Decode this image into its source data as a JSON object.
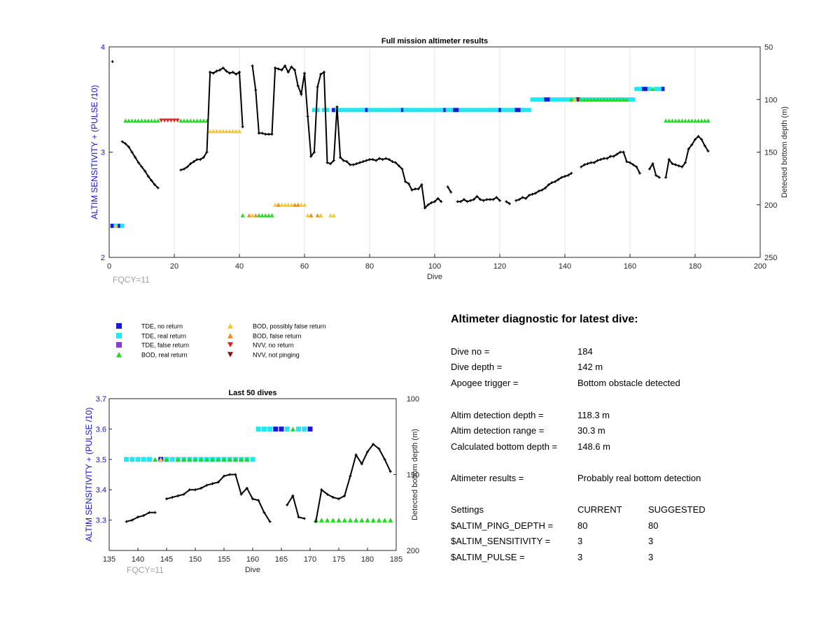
{
  "chart_data": [
    {
      "type": "scatter",
      "title": "Full mission altimeter results",
      "xlabel": "Dive",
      "ylabel": "ALTIM SENSITIVITY + (PULSE /10)",
      "y2label": "Detected bottom depth (m)",
      "annotation": "FQCY=11",
      "xlim": [
        0,
        200
      ],
      "ylim": [
        2,
        4
      ],
      "y2lim": [
        250,
        50
      ],
      "xticks": [
        "0",
        "20",
        "40",
        "60",
        "80",
        "100",
        "120",
        "140",
        "160",
        "180",
        "200"
      ],
      "yticks": [
        "2",
        "3",
        "4"
      ],
      "y2ticks": [
        "50",
        "100",
        "150",
        "200",
        "250"
      ],
      "grid": "vertical",
      "colors": {
        "axis_left": "#1414c8",
        "line": "#000000"
      },
      "markers": [
        {
          "kind": "tde_no",
          "dives": [
            1,
            3,
            69,
            79,
            90,
            103,
            106,
            107,
            120,
            125,
            126,
            134,
            135,
            144,
            164,
            165,
            170
          ]
        },
        {
          "kind": "tde_real",
          "dives": [
            2,
            4,
            70,
            71,
            72,
            73,
            74,
            75,
            76,
            77,
            78,
            80,
            81,
            82,
            83,
            84,
            85,
            86,
            87,
            88,
            89,
            91,
            92,
            93,
            94,
            95,
            96,
            97,
            98,
            99,
            100,
            101,
            102,
            104,
            105,
            108,
            109,
            110,
            111,
            112,
            113,
            114,
            115,
            116,
            117,
            118,
            119,
            121,
            122,
            123,
            124,
            127,
            128,
            129,
            130,
            131,
            132,
            133,
            136,
            137,
            138,
            139,
            140,
            141,
            142,
            143,
            145,
            146,
            147,
            148,
            149,
            150,
            151,
            152,
            153,
            154,
            155,
            156,
            157,
            158,
            159,
            160,
            161,
            162,
            163,
            166,
            168,
            169,
            63,
            64,
            66,
            67
          ]
        },
        {
          "kind": "bod_real",
          "dives": [
            5,
            6,
            7,
            8,
            9,
            10,
            11,
            12,
            13,
            14,
            15,
            22,
            23,
            24,
            25,
            26,
            27,
            28,
            29,
            30,
            41,
            46,
            47,
            48,
            49,
            50,
            65,
            142,
            145,
            146,
            147,
            148,
            149,
            150,
            151,
            152,
            153,
            154,
            155,
            156,
            157,
            158,
            159,
            167,
            171,
            172,
            173,
            174,
            175,
            176,
            177,
            178,
            179,
            180,
            181,
            182,
            183,
            184
          ]
        },
        {
          "kind": "bod_possibly_false",
          "dives": [
            2,
            31,
            32,
            33,
            34,
            35,
            36,
            37,
            38,
            39,
            40,
            44,
            51,
            52,
            53,
            54,
            55,
            56,
            57,
            58,
            59,
            60,
            61,
            62,
            65,
            68,
            69,
            143
          ]
        },
        {
          "kind": "bod_false",
          "dives": [
            43,
            45,
            52,
            57,
            58,
            62,
            64
          ]
        },
        {
          "kind": "nvv_no",
          "dives": [
            16,
            17,
            18,
            19,
            20,
            21
          ]
        },
        {
          "kind": "nvv_not",
          "dives": [
            144
          ]
        }
      ],
      "bottom_depth_series": [
        [
          1,
          64
        ],
        [
          4,
          140
        ],
        [
          5,
          142
        ],
        [
          6,
          145
        ],
        [
          7,
          150
        ],
        [
          8,
          155
        ],
        [
          9,
          160
        ],
        [
          10,
          164
        ],
        [
          11,
          168
        ],
        [
          12,
          173
        ],
        [
          13,
          177
        ],
        [
          14,
          181
        ],
        [
          15,
          184
        ],
        [
          22,
          167
        ],
        [
          23,
          166
        ],
        [
          24,
          164
        ],
        [
          25,
          161
        ],
        [
          26,
          159
        ],
        [
          27,
          157
        ],
        [
          28,
          157
        ],
        [
          29,
          155
        ],
        [
          30,
          150
        ],
        [
          31,
          74
        ],
        [
          32,
          75
        ],
        [
          33,
          73
        ],
        [
          34,
          72
        ],
        [
          35,
          70
        ],
        [
          36,
          73
        ],
        [
          37,
          75
        ],
        [
          38,
          74
        ],
        [
          39,
          76
        ],
        [
          40,
          74
        ],
        [
          41,
          126
        ],
        [
          44,
          68
        ],
        [
          45,
          91
        ],
        [
          46,
          132
        ],
        [
          47,
          132
        ],
        [
          48,
          133
        ],
        [
          49,
          133
        ],
        [
          50,
          133
        ],
        [
          51,
          70
        ],
        [
          52,
          71
        ],
        [
          53,
          72
        ],
        [
          54,
          68
        ],
        [
          55,
          74
        ],
        [
          56,
          69
        ],
        [
          57,
          72
        ],
        [
          58,
          87
        ],
        [
          59,
          95
        ],
        [
          60,
          75
        ],
        [
          61,
          116
        ],
        [
          62,
          154
        ],
        [
          63,
          150
        ],
        [
          64,
          88
        ],
        [
          65,
          76
        ],
        [
          66,
          74
        ],
        [
          67,
          160
        ],
        [
          68,
          161
        ],
        [
          69,
          158
        ],
        [
          70,
          107
        ],
        [
          71,
          155
        ],
        [
          72,
          158
        ],
        [
          73,
          159
        ],
        [
          74,
          162
        ],
        [
          75,
          162
        ],
        [
          76,
          161
        ],
        [
          77,
          160
        ],
        [
          78,
          159
        ],
        [
          79,
          158
        ],
        [
          80,
          157
        ],
        [
          81,
          157
        ],
        [
          82,
          158
        ],
        [
          83,
          156
        ],
        [
          84,
          157
        ],
        [
          85,
          156
        ],
        [
          86,
          157
        ],
        [
          87,
          159
        ],
        [
          88,
          160
        ],
        [
          89,
          163
        ],
        [
          90,
          166
        ],
        [
          91,
          178
        ],
        [
          92,
          180
        ],
        [
          93,
          186
        ],
        [
          94,
          185
        ],
        [
          95,
          185
        ],
        [
          96,
          181
        ],
        [
          97,
          203
        ],
        [
          98,
          200
        ],
        [
          99,
          198
        ],
        [
          100,
          197
        ],
        [
          101,
          194
        ],
        [
          102,
          197
        ],
        [
          104,
          183
        ],
        [
          105,
          188
        ],
        [
          107,
          197
        ],
        [
          108,
          197
        ],
        [
          109,
          195
        ],
        [
          110,
          197
        ],
        [
          111,
          196
        ],
        [
          112,
          195
        ],
        [
          113,
          192
        ],
        [
          114,
          195
        ],
        [
          115,
          196
        ],
        [
          116,
          195
        ],
        [
          117,
          195
        ],
        [
          118,
          195
        ],
        [
          119,
          193
        ],
        [
          120,
          196
        ],
        [
          122,
          197
        ],
        [
          123,
          199
        ],
        [
          125,
          196
        ],
        [
          126,
          195
        ],
        [
          127,
          193
        ],
        [
          128,
          194
        ],
        [
          129,
          191
        ],
        [
          130,
          190
        ],
        [
          131,
          189
        ],
        [
          132,
          187
        ],
        [
          133,
          186
        ],
        [
          134,
          184
        ],
        [
          135,
          181
        ],
        [
          136,
          179
        ],
        [
          137,
          178
        ],
        [
          138,
          176
        ],
        [
          139,
          174
        ],
        [
          140,
          173
        ],
        [
          141,
          172
        ],
        [
          142,
          170
        ],
        [
          145,
          164
        ],
        [
          146,
          162
        ],
        [
          147,
          161
        ],
        [
          148,
          160
        ],
        [
          149,
          160
        ],
        [
          150,
          158
        ],
        [
          151,
          157
        ],
        [
          152,
          156
        ],
        [
          153,
          156
        ],
        [
          154,
          154
        ],
        [
          155,
          154
        ],
        [
          156,
          152
        ],
        [
          157,
          150
        ],
        [
          158,
          150
        ],
        [
          159,
          159
        ],
        [
          160,
          160
        ],
        [
          161,
          162
        ],
        [
          162,
          164
        ],
        [
          163,
          170
        ],
        [
          166,
          166
        ],
        [
          167,
          161
        ],
        [
          168,
          172
        ],
        [
          169,
          174
        ],
        [
          171,
          174
        ],
        [
          172,
          157
        ],
        [
          173,
          161
        ],
        [
          174,
          162
        ],
        [
          175,
          163
        ],
        [
          176,
          164
        ],
        [
          177,
          160
        ],
        [
          178,
          147
        ],
        [
          179,
          143
        ],
        [
          180,
          138
        ],
        [
          181,
          135
        ],
        [
          182,
          138
        ],
        [
          183,
          144
        ],
        [
          184,
          149
        ]
      ]
    },
    {
      "type": "scatter",
      "title": "Last 50 dives",
      "xlabel": "Dive",
      "ylabel": "ALTIM SENSITIVITY + (PULSE /10)",
      "y2label": "Detected bottom depth (m)",
      "annotation": "FQCY=11",
      "xlim": [
        135,
        185
      ],
      "ylim": [
        3.2,
        3.7
      ],
      "y2lim": [
        200,
        100
      ],
      "xticks": [
        "135",
        "140",
        "145",
        "150",
        "155",
        "160",
        "165",
        "170",
        "175",
        "180",
        "185"
      ],
      "yticks": [
        "3.3",
        "3.4",
        "3.5",
        "3.6",
        "3.7"
      ],
      "y2ticks": [
        "100",
        "150",
        "200"
      ],
      "markers": [
        {
          "kind": "tde_real_35",
          "dives": [
            138,
            139,
            140,
            141,
            142,
            145,
            146,
            147,
            148,
            149,
            150,
            151,
            152,
            153,
            154,
            155,
            156,
            157,
            158,
            159,
            160
          ]
        },
        {
          "kind": "tde_no_35",
          "dives": [
            144
          ]
        },
        {
          "kind": "bod_real_35",
          "dives": [
            143,
            145,
            147,
            148,
            149,
            150,
            151,
            152,
            153,
            154,
            155,
            156,
            157,
            158,
            159
          ]
        },
        {
          "kind": "bod_possibly_false_35",
          "dives": [
            144
          ]
        },
        {
          "kind": "tde_real_36",
          "dives": [
            161,
            162,
            163,
            166,
            168,
            169
          ]
        },
        {
          "kind": "tde_no_36",
          "dives": [
            164,
            165,
            170
          ]
        },
        {
          "kind": "bod_real_36",
          "dives": [
            167
          ]
        },
        {
          "kind": "bod_real_33",
          "dives": [
            171,
            172,
            173,
            174,
            175,
            176,
            177,
            178,
            179,
            180,
            181,
            182,
            183,
            184
          ]
        }
      ],
      "bottom_depth_series": [
        [
          138,
          181
        ],
        [
          139,
          180
        ],
        [
          140,
          178
        ],
        [
          141,
          177
        ],
        [
          142,
          175
        ],
        [
          143,
          175
        ],
        [
          145,
          166
        ],
        [
          146,
          165
        ],
        [
          147,
          164
        ],
        [
          148,
          163
        ],
        [
          149,
          160
        ],
        [
          150,
          160
        ],
        [
          151,
          159
        ],
        [
          152,
          157
        ],
        [
          153,
          156
        ],
        [
          154,
          155
        ],
        [
          155,
          151
        ],
        [
          156,
          150
        ],
        [
          157,
          150
        ],
        [
          158,
          163
        ],
        [
          159,
          159
        ],
        [
          160,
          166
        ],
        [
          161,
          167
        ],
        [
          162,
          175
        ],
        [
          163,
          181
        ],
        [
          166,
          170
        ],
        [
          167,
          164
        ],
        [
          168,
          178
        ],
        [
          169,
          179
        ],
        [
          171,
          181
        ],
        [
          172,
          160
        ],
        [
          173,
          163
        ],
        [
          174,
          165
        ],
        [
          175,
          166
        ],
        [
          176,
          164
        ],
        [
          177,
          151
        ],
        [
          178,
          137
        ],
        [
          179,
          143
        ],
        [
          180,
          135
        ],
        [
          181,
          130
        ],
        [
          182,
          133
        ],
        [
          183,
          140
        ],
        [
          184,
          148
        ]
      ]
    }
  ],
  "legend": [
    {
      "label": "TDE, no return",
      "marker": "square",
      "color": "#1a1ad6"
    },
    {
      "label": "TDE, real return",
      "marker": "square",
      "color": "#22e6f0"
    },
    {
      "label": "TDE, false return",
      "marker": "square",
      "color": "#8c3cd2"
    },
    {
      "label": "BOD, real return",
      "marker": "triangle-up",
      "color": "#22d822"
    },
    {
      "label": "BOD, possibly false return",
      "marker": "triangle-up",
      "color": "#f5c82a"
    },
    {
      "label": "BOD, false return",
      "marker": "triangle-up",
      "color": "#f08c1a"
    },
    {
      "label": "NVV, no return",
      "marker": "triangle-down",
      "color": "#e02020"
    },
    {
      "label": "NVV, not pinging",
      "marker": "triangle-down",
      "color": "#8c1010"
    }
  ],
  "diagnostic": {
    "title": "Altimeter diagnostic for latest dive:",
    "rows": [
      {
        "label": "Dive no =",
        "value": "184"
      },
      {
        "label": "Dive depth =",
        "value": "142 m"
      },
      {
        "label": "Apogee trigger =",
        "value": "Bottom obstacle detected"
      },
      {
        "label": "Altim detection depth =",
        "value": "118.3 m"
      },
      {
        "label": "Altim detection range =",
        "value": "30.3 m"
      },
      {
        "label": "Calculated bottom depth =",
        "value": "148.6 m"
      },
      {
        "label": "Altimeter results =",
        "value": "Probably real bottom detection"
      }
    ],
    "settings_header": {
      "label": "Settings",
      "current": "CURRENT",
      "suggested": "SUGGESTED"
    },
    "settings": [
      {
        "label": "$ALTIM_PING_DEPTH =",
        "current": "80",
        "suggested": "80"
      },
      {
        "label": "$ALTIM_SENSITIVITY =",
        "current": "3",
        "suggested": "3"
      },
      {
        "label": "$ALTIM_PULSE =",
        "current": "3",
        "suggested": "3"
      }
    ]
  }
}
